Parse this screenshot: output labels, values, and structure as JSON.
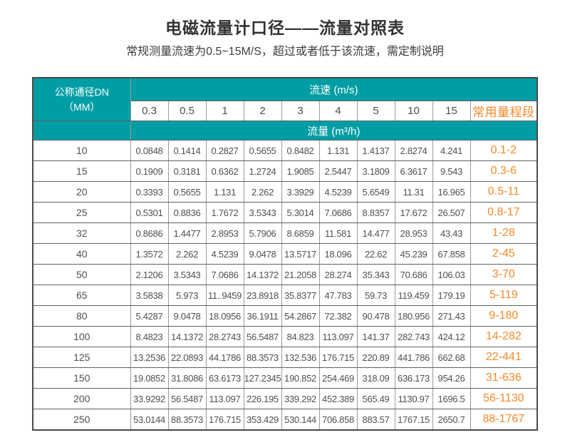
{
  "page": {
    "title": "电磁流量计口径——流量对照表",
    "subtitle": "常规测量流速为0.5~15M/S，超过或者低于该流速，需定制说明"
  },
  "colors": {
    "header_teal": "#009EA4",
    "range_orange": "#F78829"
  },
  "table": {
    "corner_header_line1": "公称通径DN",
    "corner_header_line2": "（MM）",
    "velocity_header": "流速 (m/s)",
    "flow_header": "流量 (m³/h)",
    "range_header": "常用量程段",
    "velocity_columns": [
      "0.3",
      "0.5",
      "1",
      "2",
      "3",
      "4",
      "5",
      "10",
      "15"
    ],
    "rows": [
      {
        "dn": "10",
        "values": [
          "0.0848",
          "0.1414",
          "0.2827",
          "0.5655",
          "0.8482",
          "1.131",
          "1.4137",
          "2.8274",
          "4.241"
        ],
        "range": "0.1-2"
      },
      {
        "dn": "15",
        "values": [
          "0.1909",
          "0.3181",
          "0.6362",
          "1.2724",
          "1.9085",
          "2.5447",
          "3.1809",
          "6.3617",
          "9.543"
        ],
        "range": "0.3-6"
      },
      {
        "dn": "20",
        "values": [
          "0.3393",
          "0.5655",
          "1.131",
          "2.262",
          "3.3929",
          "4.5239",
          "5.6549",
          "11.31",
          "16.965"
        ],
        "range": "0.5-11"
      },
      {
        "dn": "25",
        "values": [
          "0.5301",
          "0.8836",
          "1.7672",
          "3.5343",
          "5.3014",
          "7.0686",
          "8.8357",
          "17.672",
          "26.507"
        ],
        "range": "0.8-17"
      },
      {
        "dn": "32",
        "values": [
          "0.8686",
          "1.4477",
          "2.8953",
          "5.7906",
          "8.6859",
          "11.581",
          "14.477",
          "28.953",
          "43.43"
        ],
        "range": "1-28"
      },
      {
        "dn": "40",
        "values": [
          "1.3572",
          "2.262",
          "4.5239",
          "9.0478",
          "13.5717",
          "18.096",
          "22.62",
          "45.239",
          "67.858"
        ],
        "range": "2-45"
      },
      {
        "dn": "50",
        "values": [
          "2.1206",
          "3.5343",
          "7.0686",
          "14.1372",
          "21.2058",
          "28.274",
          "35.343",
          "70.686",
          "106.03"
        ],
        "range": "3-70"
      },
      {
        "dn": "65",
        "values": [
          "3.5838",
          "5.973",
          "11..9459",
          "23.8918",
          "35.8377",
          "47.783",
          "59.73",
          "119.459",
          "179.19"
        ],
        "range": "5-119"
      },
      {
        "dn": "80",
        "values": [
          "5.4287",
          "9.0478",
          "18.0956",
          "36.1911",
          "54.2867",
          "72.382",
          "90.478",
          "180.956",
          "271.43"
        ],
        "range": "9-180"
      },
      {
        "dn": "100",
        "values": [
          "8.4823",
          "14.1372",
          "28.2743",
          "56.5487",
          "84.823",
          "113.097",
          "141.37",
          "282.743",
          "424.12"
        ],
        "range": "14-282"
      },
      {
        "dn": "125",
        "values": [
          "13.2536",
          "22.0893",
          "44.1786",
          "88.3573",
          "132.536",
          "176.715",
          "220.89",
          "441.786",
          "662.68"
        ],
        "range": "22-441"
      },
      {
        "dn": "150",
        "values": [
          "19.0852",
          "31.8086",
          "63.6173",
          "127.2345",
          "190.852",
          "254.469",
          "318.09",
          "636.173",
          "954.26"
        ],
        "range": "31-636"
      },
      {
        "dn": "200",
        "values": [
          "33.9292",
          "56.5487",
          "113.097",
          "226.195",
          "339.292",
          "452.389",
          "565.49",
          "1130.97",
          "1696.5"
        ],
        "range": "56-1130"
      },
      {
        "dn": "250",
        "values": [
          "53.0144",
          "88.3573",
          "176.715",
          "353.429",
          "530.144",
          "706.858",
          "883.57",
          "1767.15",
          "2650.7"
        ],
        "range": "88-1767"
      }
    ]
  }
}
